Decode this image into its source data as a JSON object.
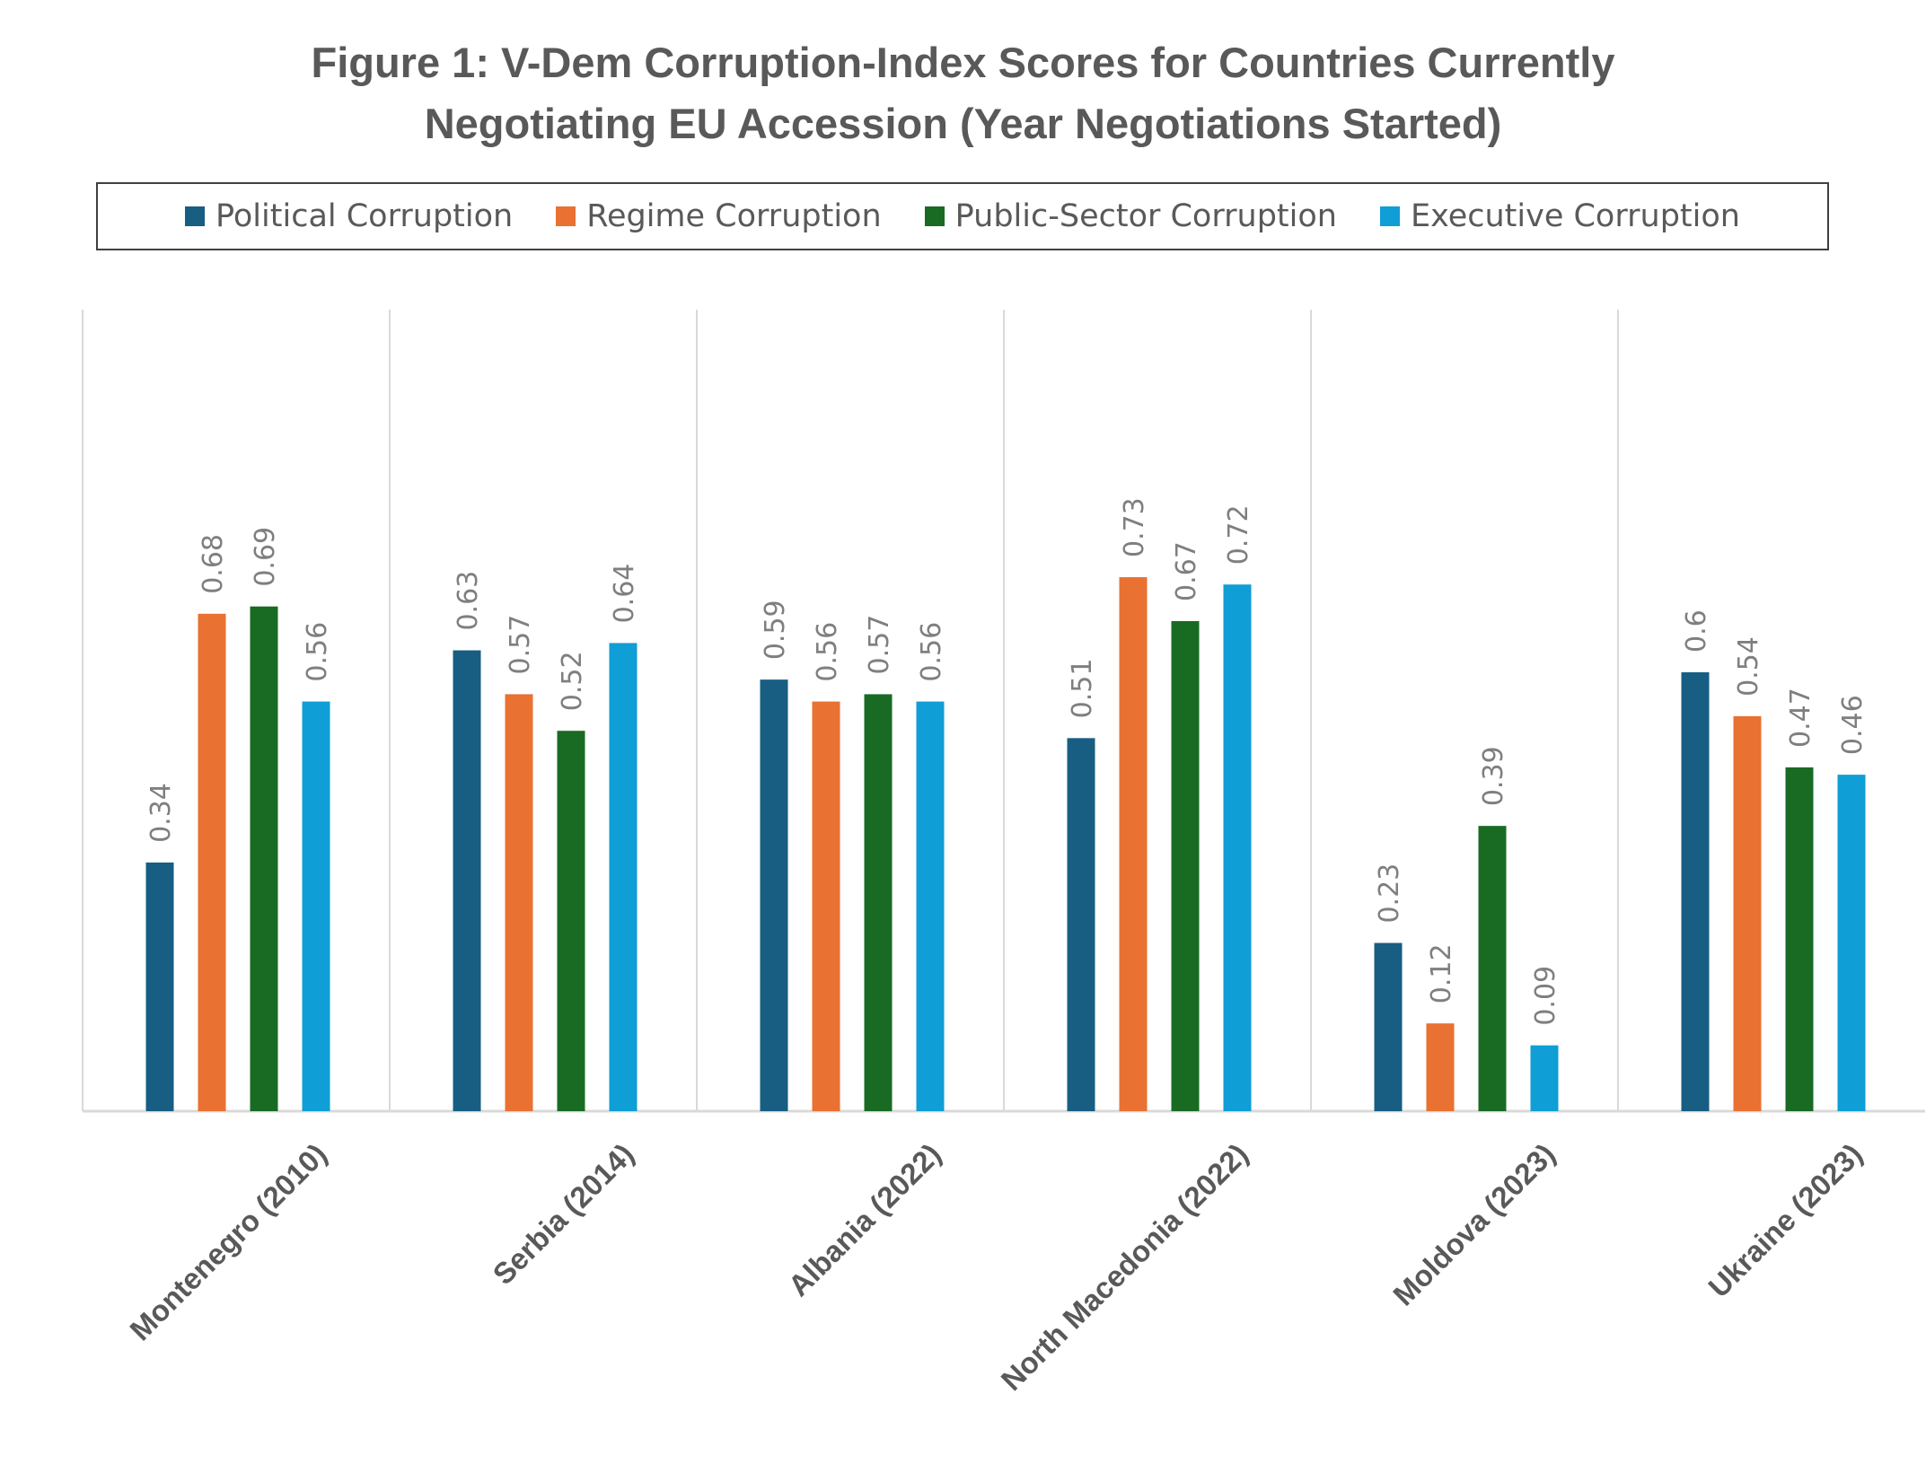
{
  "chart_data": {
    "type": "bar",
    "title_lines": [
      "Figure 1: V-Dem Corruption-Index Scores for Countries Currently",
      "Negotiating EU Accession (Year Negotiations Started)"
    ],
    "categories": [
      "Montenegro (2010)",
      "Serbia (2014)",
      "Albania (2022)",
      "North Macedonia (2022)",
      "Moldova (2023)",
      "Ukraine (2023)"
    ],
    "series": [
      {
        "name": "Political Corruption",
        "color": "#175e82",
        "values": [
          0.34,
          0.63,
          0.59,
          0.51,
          0.23,
          0.6
        ]
      },
      {
        "name": "Regime Corruption",
        "color": "#e97132",
        "values": [
          0.68,
          0.57,
          0.56,
          0.73,
          0.12,
          0.54
        ]
      },
      {
        "name": "Public-Sector Corruption",
        "color": "#196b24",
        "values": [
          0.69,
          0.52,
          0.57,
          0.67,
          0.39,
          0.47
        ]
      },
      {
        "name": "Executive Corruption",
        "color": "#0f9ed5",
        "values": [
          0.56,
          0.64,
          0.56,
          0.72,
          0.09,
          0.46
        ]
      }
    ],
    "value_labels": [
      [
        "0.34",
        "0.63",
        "0.59",
        "0.51",
        "0.23",
        "0.6"
      ],
      [
        "0.68",
        "0.57",
        "0.56",
        "0.73",
        "0.12",
        "0.54"
      ],
      [
        "0.69",
        "0.52",
        "0.57",
        "0.67",
        "0.39",
        "0.47"
      ],
      [
        "0.56",
        "0.64",
        "0.56",
        "0.72",
        "0.09",
        "0.46"
      ]
    ],
    "legend_position": "top",
    "ylim": [
      0,
      0.8
    ],
    "grid": "vertical category separators",
    "axis_color": "#d9d9d9"
  }
}
